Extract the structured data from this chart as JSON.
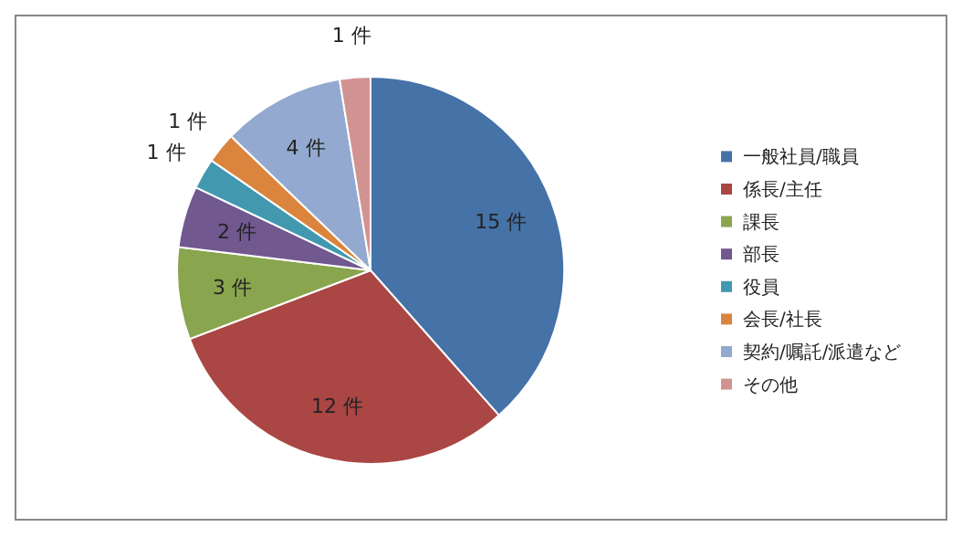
{
  "chart_data": {
    "type": "pie",
    "categories": [
      "一般社員/職員",
      "係長/主任",
      "課長",
      "部長",
      "役員",
      "会長/社長",
      "契約/嘱託/派遣など",
      "その他"
    ],
    "values": [
      15,
      12,
      3,
      2,
      1,
      1,
      4,
      1
    ],
    "value_labels": [
      "15 件",
      "12 件",
      "3 件",
      "2 件",
      "1 件",
      "1 件",
      "4 件",
      "1 件"
    ],
    "colors": [
      "#4572a7",
      "#aa4643",
      "#89a54e",
      "#71588f",
      "#4198af",
      "#db843d",
      "#93a9cf",
      "#d19392"
    ],
    "legend": "right"
  }
}
